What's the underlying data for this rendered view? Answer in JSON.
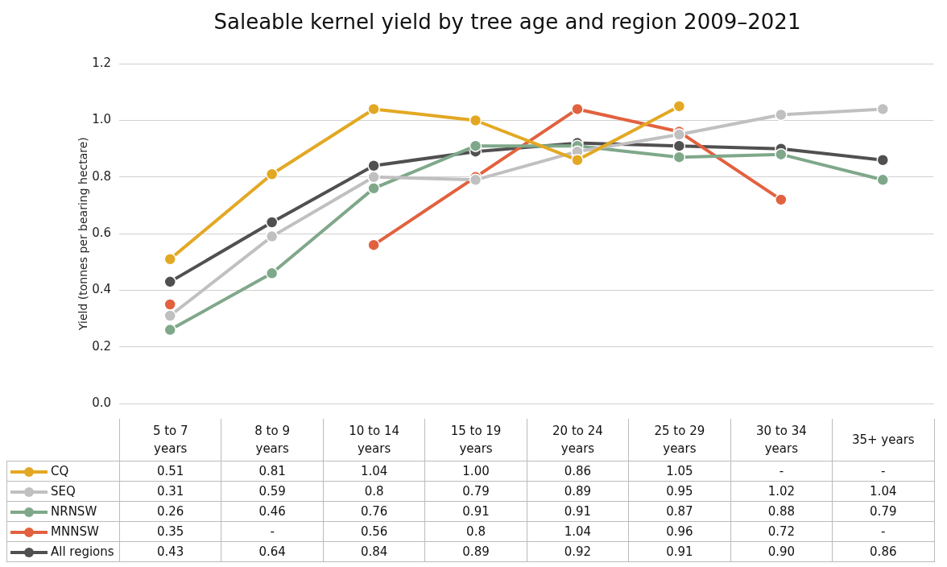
{
  "chart_data": {
    "type": "line",
    "title": "Saleable kernel yield by tree age and region 2009–2021",
    "ylabel": "Yield (tonnes per bearing hectare)",
    "categories": [
      "5 to 7 years",
      "8 to 9 years",
      "10 to 14 years",
      "15 to 19 years",
      "20 to 24 years",
      "25 to 29 years",
      "30 to 34 years",
      "35+ years"
    ],
    "series": [
      {
        "name": "CQ",
        "color": "#e3a823",
        "values": [
          0.51,
          0.81,
          1.04,
          1.0,
          0.86,
          1.05,
          null,
          null
        ],
        "value_labels": [
          "0.51",
          "0.81",
          "1.04",
          "1.00",
          "0.86",
          "1.05",
          "-",
          "-"
        ]
      },
      {
        "name": "SEQ",
        "color": "#c0c0c0",
        "values": [
          0.31,
          0.59,
          0.8,
          0.79,
          0.89,
          0.95,
          1.02,
          1.04
        ],
        "value_labels": [
          "0.31",
          "0.59",
          "0.8",
          "0.79",
          "0.89",
          "0.95",
          "1.02",
          "1.04"
        ]
      },
      {
        "name": "NRNSW",
        "color": "#7fa88a",
        "values": [
          0.26,
          0.46,
          0.76,
          0.91,
          0.91,
          0.87,
          0.88,
          0.79
        ],
        "value_labels": [
          "0.26",
          "0.46",
          "0.76",
          "0.91",
          "0.91",
          "0.87",
          "0.88",
          "0.79"
        ]
      },
      {
        "name": "MNNSW",
        "color": "#e2613f",
        "values": [
          0.35,
          null,
          0.56,
          0.8,
          1.04,
          0.96,
          0.72,
          null
        ],
        "value_labels": [
          "0.35",
          "-",
          "0.56",
          "0.8",
          "1.04",
          "0.96",
          "0.72",
          "-"
        ]
      },
      {
        "name": "All regions",
        "color": "#505050",
        "values": [
          0.43,
          0.64,
          0.84,
          0.89,
          0.92,
          0.91,
          0.9,
          0.86
        ],
        "value_labels": [
          "0.43",
          "0.64",
          "0.84",
          "0.89",
          "0.92",
          "0.91",
          "0.90",
          "0.86"
        ]
      }
    ],
    "ylim": [
      0,
      1.2
    ],
    "yticks": [
      {
        "value": 0,
        "label": "0.0"
      },
      {
        "value": 0.2,
        "label": "0.2"
      },
      {
        "value": 0.4,
        "label": "0.4"
      },
      {
        "value": 0.6,
        "label": "0.6"
      },
      {
        "value": 0.8,
        "label": "0.8"
      },
      {
        "value": 1,
        "label": "1.0"
      },
      {
        "value": 1.2,
        "label": "1.2"
      }
    ],
    "grid": "y",
    "legend": "bottom left",
    "marker": "circle",
    "line_style": "solid"
  }
}
